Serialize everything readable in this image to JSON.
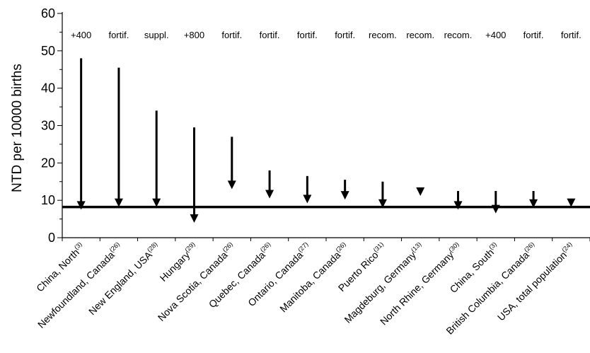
{
  "chart_data": {
    "type": "arrow",
    "title": "",
    "xlabel": "",
    "ylabel": "NTD per 10000 births",
    "ylim": [
      0,
      60
    ],
    "yticks": [
      0,
      10,
      20,
      30,
      40,
      50,
      60
    ],
    "reference_line": 8.2,
    "grid": false,
    "categories": [
      {
        "name": "China, North",
        "ref": "(3)",
        "annotation": "+400",
        "from": 48,
        "to": 7.5
      },
      {
        "name": "Newfoundland, Canada",
        "ref": "(26)",
        "annotation": "fortif.",
        "from": 45.5,
        "to": 8.2
      },
      {
        "name": "New England, USA",
        "ref": "(28)",
        "annotation": "suppl.",
        "from": 34,
        "to": 8.2
      },
      {
        "name": "Hungary",
        "ref": "(29)",
        "annotation": "+800",
        "from": 29.5,
        "to": 4
      },
      {
        "name": "Nova Scotia, Canada",
        "ref": "(26)",
        "annotation": "fortif.",
        "from": 27,
        "to": 13
      },
      {
        "name": "Quebec, Canada",
        "ref": "(26)",
        "annotation": "fortif.",
        "from": 18,
        "to": 10.5
      },
      {
        "name": "Ontario, Canada",
        "ref": "(27)",
        "annotation": "fortif.",
        "from": 16.5,
        "to": 9.2
      },
      {
        "name": "Manitoba, Canada",
        "ref": "(26)",
        "annotation": "fortif.",
        "from": 15.5,
        "to": 10.2
      },
      {
        "name": "Puerto Rico",
        "ref": "(31)",
        "annotation": "recom.",
        "from": 15,
        "to": 8
      },
      {
        "name": "Magdeburg, Germany",
        "ref": "(13)",
        "annotation": "recom.",
        "from": 13,
        "to": 11.2
      },
      {
        "name": "North Rhine, Germany",
        "ref": "(30)",
        "annotation": "recom.",
        "from": 12.5,
        "to": 7.5
      },
      {
        "name": "China, South",
        "ref": "(3)",
        "annotation": "+400",
        "from": 12.5,
        "to": 6.5
      },
      {
        "name": "British Columbia, Canada",
        "ref": "(26)",
        "annotation": "fortif.",
        "from": 12.5,
        "to": 8
      },
      {
        "name": "USA, total population",
        "ref": "(24)",
        "annotation": "fortif.",
        "from": 10.5,
        "to": 8.2
      }
    ]
  }
}
